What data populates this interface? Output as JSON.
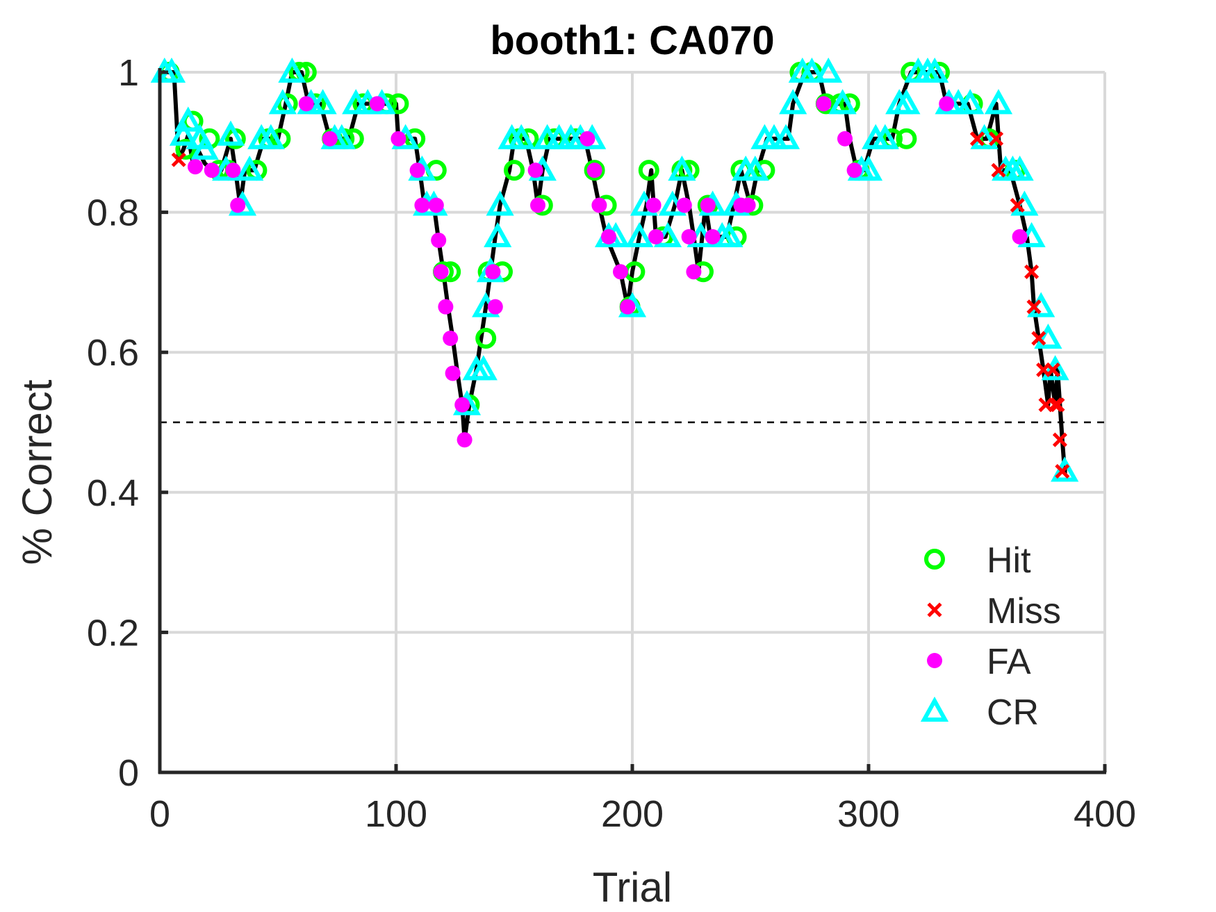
{
  "chart_data": {
    "type": "line",
    "title": "booth1: CA070",
    "xlabel": "Trial",
    "ylabel": "% Correct",
    "xlim": [
      0,
      400
    ],
    "ylim": [
      0,
      1
    ],
    "xticks": [
      0,
      100,
      200,
      300,
      400
    ],
    "yticks": [
      0,
      0.2,
      0.4,
      0.6,
      0.8,
      1
    ],
    "xtick_labels": [
      "0",
      "100",
      "200",
      "300",
      "400"
    ],
    "ytick_labels": [
      "0",
      "0.2",
      "0.4",
      "0.6",
      "0.8",
      "1"
    ],
    "grid": true,
    "reference_line": {
      "y": 0.5,
      "style": "dashed"
    },
    "legend": {
      "position": "bottom-right",
      "entries": [
        {
          "name": "Hit",
          "marker": "open-circle",
          "color": "#00ff00"
        },
        {
          "name": "Miss",
          "marker": "x",
          "color": "#ff0000"
        },
        {
          "name": "FA",
          "marker": "filled-circle",
          "color": "#ff00ff"
        },
        {
          "name": "CR",
          "marker": "open-triangle",
          "color": "#00ffff"
        }
      ]
    },
    "line_color": "#000000",
    "curve": [
      [
        1,
        1
      ],
      [
        6,
        1
      ],
      [
        8,
        0.875
      ],
      [
        10,
        0.89
      ],
      [
        12,
        0.91
      ],
      [
        14,
        0.87
      ],
      [
        16,
        0.89
      ],
      [
        19,
        0.87
      ],
      [
        22,
        0.86
      ],
      [
        26,
        0.86
      ],
      [
        30,
        0.905
      ],
      [
        32,
        0.86
      ],
      [
        34,
        0.81
      ],
      [
        36,
        0.86
      ],
      [
        40,
        0.86
      ],
      [
        44,
        0.905
      ],
      [
        50,
        0.905
      ],
      [
        53,
        0.95
      ],
      [
        56,
        1
      ],
      [
        60,
        1
      ],
      [
        63,
        0.955
      ],
      [
        68,
        0.955
      ],
      [
        72,
        0.905
      ],
      [
        80,
        0.905
      ],
      [
        84,
        0.955
      ],
      [
        92,
        0.955
      ],
      [
        100,
        0.955
      ],
      [
        101,
        0.905
      ],
      [
        108,
        0.905
      ],
      [
        110,
        0.86
      ],
      [
        112,
        0.81
      ],
      [
        116,
        0.81
      ],
      [
        118,
        0.76
      ],
      [
        120,
        0.715
      ],
      [
        122,
        0.665
      ],
      [
        124,
        0.62
      ],
      [
        126,
        0.57
      ],
      [
        128,
        0.525
      ],
      [
        129,
        0.475
      ],
      [
        131,
        0.525
      ],
      [
        134,
        0.575
      ],
      [
        136,
        0.62
      ],
      [
        138,
        0.665
      ],
      [
        140,
        0.715
      ],
      [
        142,
        0.765
      ],
      [
        144,
        0.81
      ],
      [
        148,
        0.86
      ],
      [
        150,
        0.905
      ],
      [
        155,
        0.905
      ],
      [
        158,
        0.86
      ],
      [
        160,
        0.81
      ],
      [
        162,
        0.86
      ],
      [
        165,
        0.905
      ],
      [
        180,
        0.905
      ],
      [
        183,
        0.86
      ],
      [
        186,
        0.81
      ],
      [
        189,
        0.765
      ],
      [
        195,
        0.715
      ],
      [
        198,
        0.665
      ],
      [
        200,
        0.715
      ],
      [
        203,
        0.765
      ],
      [
        206,
        0.81
      ],
      [
        208,
        0.86
      ],
      [
        210,
        0.765
      ],
      [
        214,
        0.765
      ],
      [
        218,
        0.81
      ],
      [
        221,
        0.86
      ],
      [
        224,
        0.81
      ],
      [
        226,
        0.765
      ],
      [
        228,
        0.715
      ],
      [
        231,
        0.81
      ],
      [
        233,
        0.765
      ],
      [
        240,
        0.765
      ],
      [
        243,
        0.81
      ],
      [
        246,
        0.86
      ],
      [
        250,
        0.81
      ],
      [
        253,
        0.86
      ],
      [
        257,
        0.905
      ],
      [
        266,
        0.905
      ],
      [
        268,
        0.955
      ],
      [
        273,
        1
      ],
      [
        279,
        1
      ],
      [
        282,
        0.955
      ],
      [
        290,
        0.955
      ],
      [
        292,
        0.905
      ],
      [
        295,
        0.86
      ],
      [
        298,
        0.86
      ],
      [
        302,
        0.905
      ],
      [
        310,
        0.905
      ],
      [
        313,
        0.955
      ],
      [
        318,
        1
      ],
      [
        330,
        1
      ],
      [
        333,
        0.955
      ],
      [
        342,
        0.955
      ],
      [
        346,
        0.905
      ],
      [
        350,
        0.905
      ],
      [
        354,
        0.955
      ],
      [
        356,
        0.86
      ],
      [
        360,
        0.86
      ],
      [
        364,
        0.81
      ],
      [
        367,
        0.765
      ],
      [
        369,
        0.715
      ],
      [
        370,
        0.665
      ],
      [
        372,
        0.62
      ],
      [
        374,
        0.575
      ],
      [
        376,
        0.525
      ],
      [
        377,
        0.575
      ],
      [
        379,
        0.525
      ],
      [
        380,
        0.575
      ],
      [
        381,
        0.525
      ],
      [
        382,
        0.475
      ],
      [
        383,
        0.43
      ],
      [
        384,
        0.43
      ]
    ],
    "series": [
      {
        "name": "Hit",
        "marker": "open-circle",
        "color": "#00ff00",
        "points": [
          [
            4,
            1
          ],
          [
            11,
            0.89
          ],
          [
            14,
            0.93
          ],
          [
            21,
            0.905
          ],
          [
            25,
            0.86
          ],
          [
            29,
            0.86
          ],
          [
            32,
            0.905
          ],
          [
            41,
            0.86
          ],
          [
            46,
            0.905
          ],
          [
            51,
            0.905
          ],
          [
            54,
            0.955
          ],
          [
            59,
            1
          ],
          [
            62,
            1
          ],
          [
            66,
            0.955
          ],
          [
            73,
            0.905
          ],
          [
            78,
            0.905
          ],
          [
            82,
            0.905
          ],
          [
            86,
            0.955
          ],
          [
            96,
            0.955
          ],
          [
            101,
            0.955
          ],
          [
            108,
            0.905
          ],
          [
            117,
            0.86
          ],
          [
            120,
            0.715
          ],
          [
            123,
            0.715
          ],
          [
            131,
            0.525
          ],
          [
            138,
            0.62
          ],
          [
            139,
            0.715
          ],
          [
            145,
            0.715
          ],
          [
            150,
            0.86
          ],
          [
            152,
            0.905
          ],
          [
            156,
            0.905
          ],
          [
            162,
            0.81
          ],
          [
            167,
            0.905
          ],
          [
            176,
            0.905
          ],
          [
            184,
            0.86
          ],
          [
            189,
            0.81
          ],
          [
            199,
            0.665
          ],
          [
            201,
            0.715
          ],
          [
            207,
            0.86
          ],
          [
            213,
            0.765
          ],
          [
            221,
            0.86
          ],
          [
            224,
            0.86
          ],
          [
            230,
            0.715
          ],
          [
            232,
            0.81
          ],
          [
            244,
            0.765
          ],
          [
            246,
            0.86
          ],
          [
            251,
            0.81
          ],
          [
            256,
            0.86
          ],
          [
            271,
            1
          ],
          [
            276,
            1
          ],
          [
            282,
            0.955
          ],
          [
            288,
            0.955
          ],
          [
            292,
            0.955
          ],
          [
            296,
            0.86
          ],
          [
            310,
            0.905
          ],
          [
            316,
            0.905
          ],
          [
            318,
            1
          ],
          [
            330,
            1
          ],
          [
            344,
            0.955
          ],
          [
            351,
            0.905
          ],
          [
            362,
            0.86
          ]
        ]
      },
      {
        "name": "Miss",
        "marker": "x",
        "color": "#ff0000",
        "points": [
          [
            8,
            0.875
          ],
          [
            346,
            0.905
          ],
          [
            354,
            0.905
          ],
          [
            355,
            0.86
          ],
          [
            363,
            0.81
          ],
          [
            369,
            0.715
          ],
          [
            370,
            0.665
          ],
          [
            372,
            0.62
          ],
          [
            374,
            0.575
          ],
          [
            375,
            0.525
          ],
          [
            378,
            0.575
          ],
          [
            379,
            0.525
          ],
          [
            380,
            0.525
          ],
          [
            381,
            0.475
          ],
          [
            382,
            0.43
          ]
        ]
      },
      {
        "name": "FA",
        "marker": "filled-circle",
        "color": "#ff00ff",
        "points": [
          [
            15,
            0.865
          ],
          [
            22,
            0.86
          ],
          [
            31,
            0.86
          ],
          [
            33,
            0.81
          ],
          [
            62,
            0.955
          ],
          [
            72,
            0.905
          ],
          [
            92,
            0.955
          ],
          [
            101,
            0.905
          ],
          [
            109,
            0.86
          ],
          [
            111,
            0.81
          ],
          [
            117,
            0.81
          ],
          [
            118,
            0.76
          ],
          [
            119,
            0.715
          ],
          [
            121,
            0.665
          ],
          [
            123,
            0.62
          ],
          [
            124,
            0.57
          ],
          [
            128,
            0.525
          ],
          [
            129,
            0.475
          ],
          [
            141,
            0.715
          ],
          [
            142,
            0.665
          ],
          [
            159,
            0.86
          ],
          [
            160,
            0.81
          ],
          [
            181,
            0.905
          ],
          [
            184,
            0.86
          ],
          [
            186,
            0.81
          ],
          [
            190,
            0.765
          ],
          [
            195,
            0.715
          ],
          [
            198,
            0.665
          ],
          [
            209,
            0.81
          ],
          [
            210,
            0.765
          ],
          [
            222,
            0.81
          ],
          [
            224,
            0.765
          ],
          [
            226,
            0.715
          ],
          [
            232,
            0.81
          ],
          [
            234,
            0.765
          ],
          [
            246,
            0.81
          ],
          [
            249,
            0.81
          ],
          [
            281,
            0.955
          ],
          [
            290,
            0.905
          ],
          [
            294,
            0.86
          ],
          [
            333,
            0.955
          ],
          [
            364,
            0.765
          ]
        ]
      },
      {
        "name": "CR",
        "marker": "open-triangle",
        "color": "#00ffff",
        "points": [
          [
            2,
            1
          ],
          [
            5,
            1
          ],
          [
            10,
            0.91
          ],
          [
            12,
            0.93
          ],
          [
            17,
            0.905
          ],
          [
            19,
            0.89
          ],
          [
            28,
            0.86
          ],
          [
            30,
            0.91
          ],
          [
            35,
            0.81
          ],
          [
            38,
            0.86
          ],
          [
            43,
            0.905
          ],
          [
            47,
            0.905
          ],
          [
            52,
            0.955
          ],
          [
            56,
            1
          ],
          [
            64,
            0.955
          ],
          [
            69,
            0.955
          ],
          [
            74,
            0.905
          ],
          [
            77,
            0.905
          ],
          [
            83,
            0.955
          ],
          [
            88,
            0.955
          ],
          [
            94,
            0.955
          ],
          [
            104,
            0.905
          ],
          [
            111,
            0.86
          ],
          [
            113,
            0.81
          ],
          [
            116,
            0.81
          ],
          [
            130,
            0.525
          ],
          [
            134,
            0.575
          ],
          [
            137,
            0.575
          ],
          [
            138,
            0.665
          ],
          [
            140,
            0.715
          ],
          [
            143,
            0.765
          ],
          [
            144,
            0.81
          ],
          [
            149,
            0.905
          ],
          [
            153,
            0.905
          ],
          [
            162,
            0.86
          ],
          [
            164,
            0.905
          ],
          [
            169,
            0.905
          ],
          [
            174,
            0.905
          ],
          [
            178,
            0.905
          ],
          [
            183,
            0.905
          ],
          [
            190,
            0.765
          ],
          [
            193,
            0.765
          ],
          [
            200,
            0.665
          ],
          [
            203,
            0.765
          ],
          [
            205,
            0.81
          ],
          [
            215,
            0.765
          ],
          [
            217,
            0.81
          ],
          [
            221,
            0.86
          ],
          [
            229,
            0.765
          ],
          [
            234,
            0.81
          ],
          [
            238,
            0.765
          ],
          [
            241,
            0.765
          ],
          [
            244,
            0.81
          ],
          [
            248,
            0.86
          ],
          [
            252,
            0.86
          ],
          [
            256,
            0.905
          ],
          [
            260,
            0.905
          ],
          [
            265,
            0.905
          ],
          [
            268,
            0.955
          ],
          [
            272,
            1
          ],
          [
            276,
            1
          ],
          [
            283,
            1
          ],
          [
            289,
            0.955
          ],
          [
            297,
            0.86
          ],
          [
            300,
            0.86
          ],
          [
            303,
            0.905
          ],
          [
            307,
            0.905
          ],
          [
            313,
            0.955
          ],
          [
            316,
            0.955
          ],
          [
            321,
            1
          ],
          [
            325,
            1
          ],
          [
            328,
            1
          ],
          [
            334,
            0.955
          ],
          [
            338,
            0.955
          ],
          [
            343,
            0.955
          ],
          [
            349,
            0.905
          ],
          [
            355,
            0.955
          ],
          [
            358,
            0.86
          ],
          [
            361,
            0.86
          ],
          [
            364,
            0.86
          ],
          [
            366,
            0.81
          ],
          [
            369,
            0.765
          ],
          [
            373,
            0.665
          ],
          [
            376,
            0.62
          ],
          [
            379,
            0.575
          ],
          [
            383,
            0.43
          ]
        ]
      }
    ]
  }
}
